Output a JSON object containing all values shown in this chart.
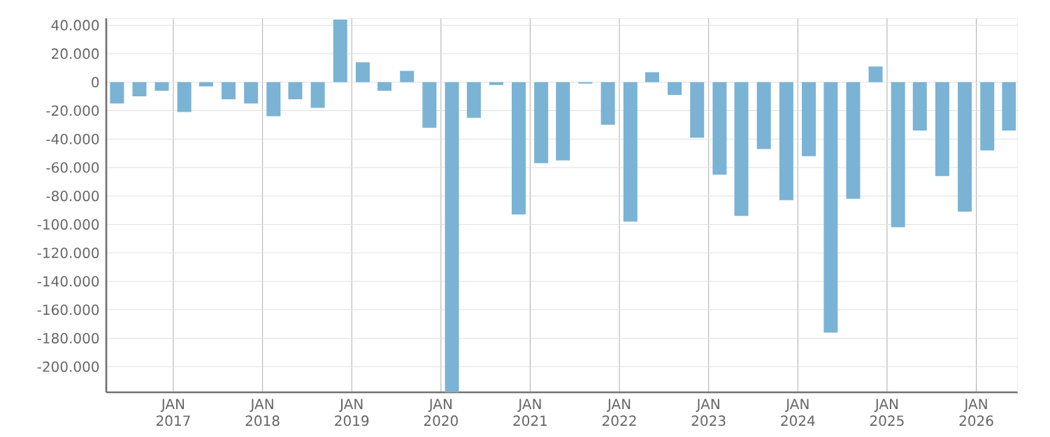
{
  "chart_data": {
    "type": "bar",
    "color": "#7ab3d4",
    "grid": true,
    "x": [
      "2016-05-15",
      "2016-08-15",
      "2016-11-15",
      "2017-02-15",
      "2017-05-15",
      "2017-08-15",
      "2017-11-15",
      "2018-02-15",
      "2018-05-15",
      "2018-08-15",
      "2018-11-15",
      "2019-02-15",
      "2019-05-15",
      "2019-08-15",
      "2019-11-15",
      "2020-02-15",
      "2020-05-15",
      "2020-08-15",
      "2020-11-15",
      "2021-02-15",
      "2021-05-15",
      "2021-08-15",
      "2021-11-15",
      "2022-02-15",
      "2022-05-15",
      "2022-08-15",
      "2022-11-15",
      "2023-02-15",
      "2023-05-15",
      "2023-08-15",
      "2023-11-15",
      "2024-02-15",
      "2024-05-15",
      "2024-08-15",
      "2024-11-15",
      "2025-02-15",
      "2025-05-15",
      "2025-08-15",
      "2025-11-15",
      "2026-02-15",
      "2026-05-15"
    ],
    "values": [
      -15000,
      -10000,
      -6000,
      -21000,
      -3000,
      -12000,
      -15000,
      -24000,
      -12000,
      -18000,
      44000,
      14000,
      -6000,
      8000,
      -32000,
      -218000,
      -25000,
      -2000,
      -93000,
      -57000,
      -55000,
      -1000,
      -30000,
      -98000,
      7000,
      -9000,
      -39000,
      -65000,
      -94000,
      -47000,
      -83000,
      -52000,
      -176000,
      -82000,
      11000,
      -102000,
      -34000,
      -66000,
      -91000,
      -48000,
      -34000
    ],
    "xlim": [
      "2016-04-01",
      "2026-06-20"
    ],
    "xticks": [
      {
        "value": "2017-01-01",
        "label": "JAN 2017"
      },
      {
        "value": "2018-01-01",
        "label": "JAN 2018"
      },
      {
        "value": "2019-01-01",
        "label": "JAN 2019"
      },
      {
        "value": "2020-01-01",
        "label": "JAN 2020"
      },
      {
        "value": "2021-01-01",
        "label": "JAN 2021"
      },
      {
        "value": "2022-01-01",
        "label": "JAN 2022"
      },
      {
        "value": "2023-01-01",
        "label": "JAN 2023"
      },
      {
        "value": "2024-01-01",
        "label": "JAN 2024"
      },
      {
        "value": "2025-01-01",
        "label": "JAN 2025"
      },
      {
        "value": "2026-01-01",
        "label": "JAN 2026"
      }
    ],
    "ylim": [
      -218000,
      45000
    ],
    "yticks": [
      {
        "value": 40000,
        "label": "40.000"
      },
      {
        "value": 20000,
        "label": "20.000"
      },
      {
        "value": 0,
        "label": "0"
      },
      {
        "value": -20000,
        "label": "-20.000"
      },
      {
        "value": -40000,
        "label": "-40.000"
      },
      {
        "value": -60000,
        "label": "-60.000"
      },
      {
        "value": -80000,
        "label": "-80.000"
      },
      {
        "value": -100000,
        "label": "-100.000"
      },
      {
        "value": -120000,
        "label": "-120.000"
      },
      {
        "value": -140000,
        "label": "-140.000"
      },
      {
        "value": -160000,
        "label": "-160.000"
      },
      {
        "value": -180000,
        "label": "-180.000"
      },
      {
        "value": -200000,
        "label": "-200.000"
      }
    ]
  }
}
